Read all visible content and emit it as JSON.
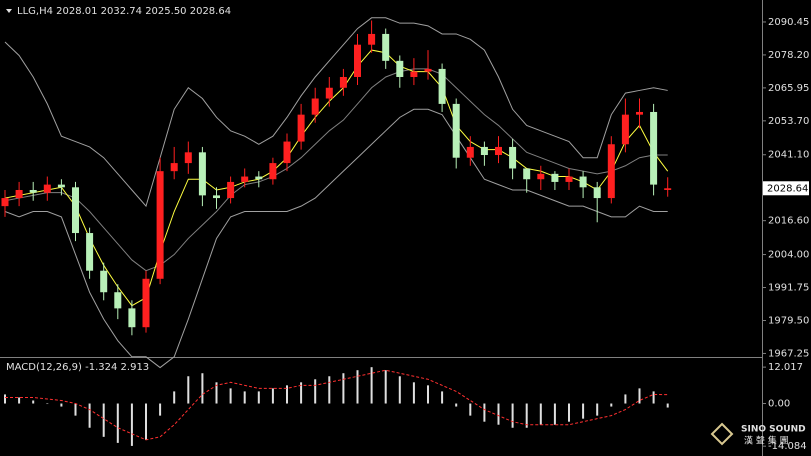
{
  "chart_data": [
    {
      "type": "candlestick",
      "title": "LLG,H4  2028.01 2032.74 2025.50 2028.64",
      "up_color": "#ff2020",
      "down_color": "#b8f0b8",
      "open": [
        2022,
        2025,
        2028,
        2027,
        2030,
        2029,
        2012,
        1998,
        1990,
        1984,
        1977,
        1995,
        2035,
        2038,
        2042,
        2026,
        2025,
        2031,
        2033,
        2032,
        2038,
        2046,
        2056,
        2062,
        2066,
        2070,
        2082,
        2086,
        2076,
        2070,
        2072,
        2073,
        2060,
        2040,
        2044,
        2041,
        2044,
        2036,
        2032,
        2034,
        2031,
        2033,
        2029,
        2025,
        2045,
        2056,
        2057,
        2028.01
      ],
      "high": [
        2028,
        2031,
        2031,
        2033,
        2032,
        2031,
        2014,
        2001,
        1993,
        1987,
        1998,
        2040,
        2044,
        2046,
        2044,
        2029,
        2033,
        2036,
        2035,
        2040,
        2049,
        2060,
        2066,
        2070,
        2073,
        2086,
        2091,
        2088,
        2078,
        2077,
        2080,
        2075,
        2062,
        2048,
        2046,
        2048,
        2047,
        2036,
        2037,
        2035,
        2036,
        2035,
        2031,
        2048,
        2062,
        2062,
        2060,
        2032.74
      ],
      "low": [
        2018,
        2022,
        2024,
        2024,
        2026,
        2009,
        1995,
        1987,
        1980,
        1974,
        1975,
        1993,
        2032,
        2034,
        2022,
        2021,
        2023,
        2029,
        2029,
        2030,
        2035,
        2043,
        2053,
        2059,
        2063,
        2067,
        2079,
        2073,
        2066,
        2067,
        2069,
        2057,
        2036,
        2037,
        2037,
        2038,
        2032,
        2027,
        2028,
        2028,
        2028,
        2025,
        2016,
        2023,
        2042,
        2051,
        2026,
        2025.5
      ],
      "close": [
        2025,
        2028,
        2027,
        2030,
        2029,
        2012,
        1998,
        1990,
        1984,
        1977,
        1995,
        2035,
        2038,
        2042,
        2026,
        2025,
        2031,
        2033,
        2032,
        2038,
        2046,
        2056,
        2062,
        2066,
        2070,
        2082,
        2086,
        2076,
        2070,
        2072,
        2073,
        2060,
        2040,
        2044,
        2041,
        2044,
        2036,
        2032,
        2034,
        2031,
        2033,
        2029,
        2025,
        2045,
        2056,
        2057,
        2030,
        2028.64
      ],
      "series": [
        {
          "name": "BB upper",
          "color": "#a0a0a0",
          "values": [
            2083,
            2078,
            2070,
            2060,
            2048,
            2046,
            2044,
            2040,
            2034,
            2028,
            2022,
            2040,
            2058,
            2066,
            2062,
            2055,
            2050,
            2048,
            2045,
            2048,
            2055,
            2063,
            2070,
            2076,
            2082,
            2088,
            2092,
            2092,
            2090,
            2090,
            2089,
            2086,
            2086,
            2084,
            2080,
            2070,
            2058,
            2052,
            2050,
            2048,
            2046,
            2040,
            2040,
            2056,
            2064,
            2065,
            2066,
            2065
          ]
        },
        {
          "name": "BB middle",
          "color": "#808080",
          "values": [
            2024,
            2025,
            2026,
            2027,
            2027,
            2025,
            2020,
            2014,
            2008,
            2002,
            1998,
            2000,
            2004,
            2010,
            2015,
            2020,
            2026,
            2030,
            2031,
            2033,
            2036,
            2040,
            2045,
            2050,
            2054,
            2060,
            2066,
            2070,
            2072,
            2073,
            2073,
            2071,
            2066,
            2061,
            2056,
            2052,
            2047,
            2042,
            2040,
            2038,
            2036,
            2035,
            2034,
            2035,
            2037,
            2040,
            2041,
            2041
          ]
        },
        {
          "name": "BB lower",
          "color": "#a0a0a0",
          "values": [
            2020,
            2018,
            2020,
            2020,
            2018,
            2004,
            1990,
            1980,
            1972,
            1966,
            1966,
            1962,
            1966,
            1980,
            1995,
            2010,
            2018,
            2020,
            2020,
            2020,
            2020,
            2022,
            2025,
            2030,
            2035,
            2040,
            2045,
            2050,
            2055,
            2058,
            2058,
            2056,
            2048,
            2040,
            2032,
            2030,
            2028,
            2028,
            2026,
            2024,
            2022,
            2022,
            2020,
            2018,
            2018,
            2022,
            2020,
            2020
          ]
        },
        {
          "name": "MA",
          "color": "#ffff40",
          "values": [
            2025,
            2026,
            2027,
            2028,
            2029,
            2022,
            2010,
            2000,
            1992,
            1985,
            1988,
            2005,
            2020,
            2032,
            2032,
            2028,
            2029,
            2031,
            2032,
            2035,
            2040,
            2048,
            2055,
            2061,
            2066,
            2074,
            2080,
            2079,
            2074,
            2072,
            2072,
            2066,
            2052,
            2046,
            2043,
            2043,
            2040,
            2036,
            2035,
            2033,
            2033,
            2031,
            2028,
            2035,
            2046,
            2052,
            2042,
            2035
          ]
        }
      ],
      "last_price": 2028.64,
      "ylim": [
        1966.3,
        2097.5
      ],
      "yticks": [
        2090.45,
        {
          "value": 2078.2,
          "label": "2078.20"
        },
        2065.95,
        {
          "value": 2053.7,
          "label": "2053.70"
        },
        {
          "value": 2041.1,
          "label": "2041.10"
        },
        {
          "value": 2016.6,
          "label": "2016.60"
        },
        {
          "value": 2004,
          "label": "2004.00"
        },
        1991.75,
        {
          "value": 1979.5,
          "label": "1979.50"
        },
        1967.25
      ]
    },
    {
      "type": "macd",
      "title": "MACD(12,26,9) -1.324 2.913",
      "color": "#e0e0e0",
      "values": [
        3,
        2,
        1,
        0,
        -1,
        -4,
        -8,
        -11,
        -13,
        -14,
        -12,
        -4,
        4,
        9,
        10,
        7,
        5,
        4,
        4,
        5,
        6,
        7,
        8,
        9,
        10,
        11,
        12,
        11,
        9,
        7,
        6,
        4,
        -1,
        -4,
        -6,
        -7,
        -8,
        -8,
        -7,
        -7,
        -6,
        -5,
        -4,
        -1,
        3,
        5,
        4,
        -1.324
      ],
      "series": [
        {
          "name": "Signal",
          "color": "#ff3030",
          "values": [
            2,
            2,
            2,
            1.5,
            1,
            0,
            -2,
            -5,
            -8,
            -10,
            -12,
            -11,
            -7,
            -2,
            3,
            6,
            7,
            6,
            5,
            5,
            5,
            6,
            6,
            7,
            8,
            9,
            10,
            11,
            10,
            9,
            8,
            6,
            4,
            1,
            -2,
            -4,
            -6,
            -7,
            -7,
            -7,
            -7,
            -6,
            -5,
            -4,
            -2,
            1,
            3,
            2.913
          ]
        }
      ],
      "ylim": [
        -17,
        14.7
      ],
      "yticks": [
        12.017,
        {
          "value": 0,
          "label": "0.00"
        },
        -14.084
      ]
    }
  ],
  "logo": {
    "text": "SINO SOUND",
    "subtext": "漢 聲 集 團"
  }
}
